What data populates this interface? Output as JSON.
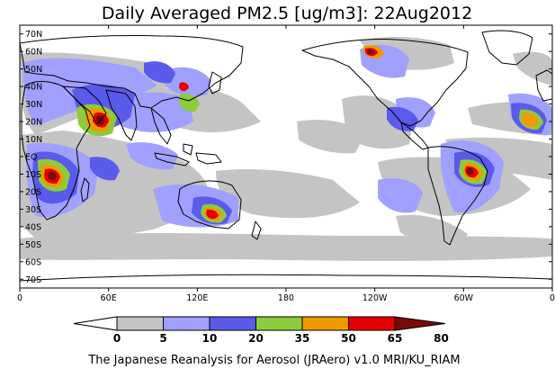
{
  "title": "Daily Averaged PM2.5 [ug/m3]: 22Aug2012",
  "credit": "The Japanese Reanalysis for Aerosol (JRAero) v1.0 MRI/KU_RIAM",
  "map": {
    "projection": "Equirectangular",
    "lon_range": [
      0,
      360
    ],
    "lat_range": [
      -75,
      75
    ],
    "lat_ticks": [
      {
        "lat": 70,
        "label": "70N"
      },
      {
        "lat": 60,
        "label": "60N"
      },
      {
        "lat": 50,
        "label": "50N"
      },
      {
        "lat": 40,
        "label": "40N"
      },
      {
        "lat": 30,
        "label": "30N"
      },
      {
        "lat": 20,
        "label": "20N"
      },
      {
        "lat": 10,
        "label": "10N"
      },
      {
        "lat": 0,
        "label": "EQ"
      },
      {
        "lat": -10,
        "label": "10S"
      },
      {
        "lat": -20,
        "label": "20S"
      },
      {
        "lat": -30,
        "label": "30S"
      },
      {
        "lat": -40,
        "label": "40S"
      },
      {
        "lat": -50,
        "label": "50S"
      },
      {
        "lat": -60,
        "label": "60S"
      },
      {
        "lat": -70,
        "label": "70S"
      }
    ],
    "lon_ticks": [
      {
        "lon": 0,
        "label": "0"
      },
      {
        "lon": 60,
        "label": "60E"
      },
      {
        "lon": 120,
        "label": "120E"
      },
      {
        "lon": 180,
        "label": "180"
      },
      {
        "lon": 240,
        "label": "120W"
      },
      {
        "lon": 300,
        "label": "60W"
      },
      {
        "lon": 360,
        "label": "0"
      }
    ]
  },
  "colorbar": {
    "thresholds": [
      0,
      5,
      10,
      20,
      35,
      50,
      65,
      80
    ],
    "labels": [
      "0",
      "5",
      "10",
      "20",
      "35",
      "50",
      "65",
      "80"
    ],
    "colors": [
      "#ffffff",
      "#c4c4c4",
      "#a0a0ff",
      "#5a5aeb",
      "#8ccc3c",
      "#ee9a00",
      "#e60000",
      "#7a0a0a"
    ]
  }
}
